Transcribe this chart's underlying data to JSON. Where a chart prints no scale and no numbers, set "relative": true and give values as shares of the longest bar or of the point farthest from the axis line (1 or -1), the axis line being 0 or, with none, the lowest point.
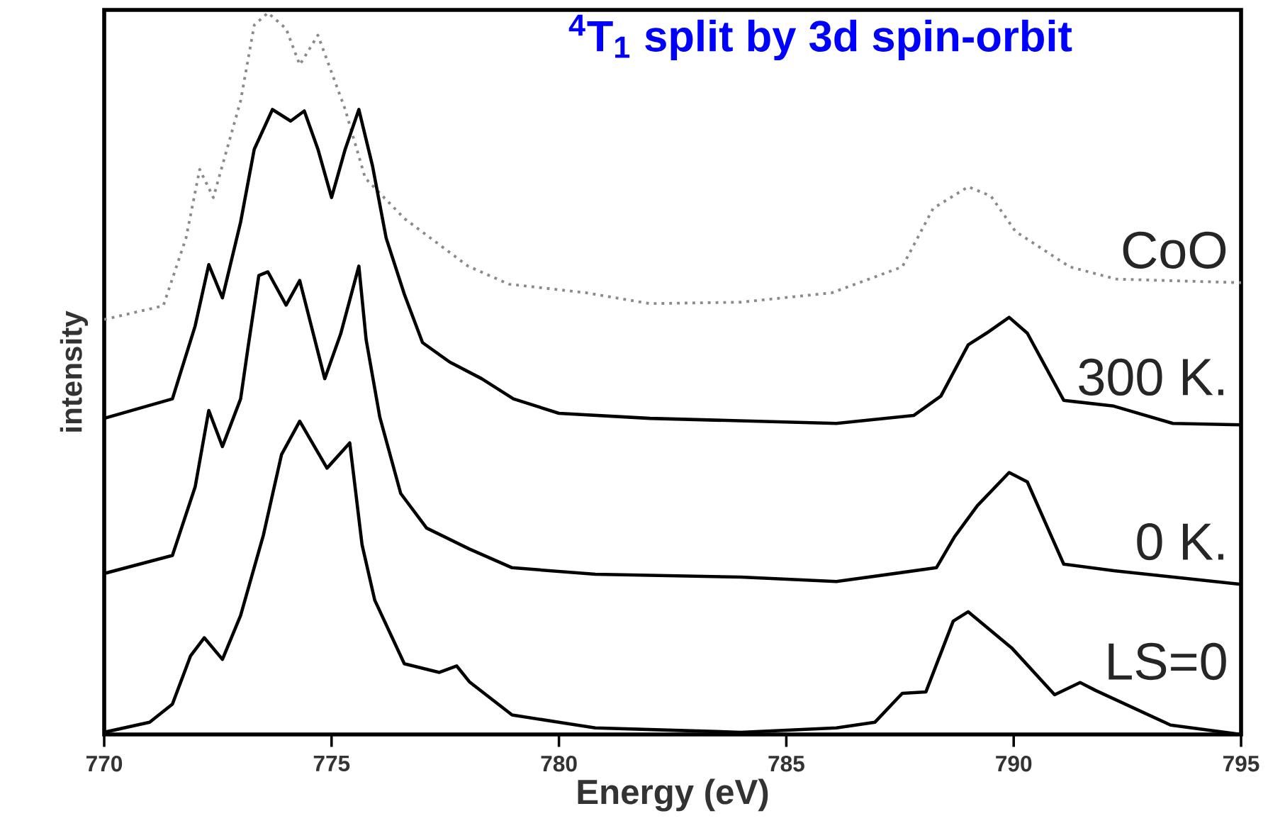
{
  "chart_data": {
    "type": "line",
    "title": "$^{4}$T$_{1}$ split by 3d spin-orbit",
    "xlabel": "Energy (eV)",
    "ylabel": "intensity",
    "relative": true,
    "xlim": [
      770,
      795
    ],
    "xticks": [
      770,
      775,
      780,
      785,
      790,
      795
    ],
    "grid": false,
    "marker": "none",
    "series": [
      {
        "name": "CoO",
        "color": "#8a8a8a",
        "line_style": "dotted",
        "x": [
          770,
          771.3,
          771.8,
          772.1,
          772.4,
          773.0,
          773.3,
          773.6,
          774.0,
          774.3,
          774.7,
          775.3,
          775.74,
          776.6,
          778.0,
          778.9,
          780.6,
          782,
          784,
          786,
          787.55,
          788.23,
          789.0,
          789.5,
          790.04,
          791.23,
          792.26,
          795
        ],
        "values": [
          0.575,
          0.594,
          0.688,
          0.783,
          0.744,
          0.878,
          0.983,
          1.0,
          0.978,
          0.928,
          0.969,
          0.866,
          0.771,
          0.715,
          0.649,
          0.624,
          0.612,
          0.597,
          0.599,
          0.612,
          0.648,
          0.729,
          0.759,
          0.746,
          0.697,
          0.648,
          0.631,
          0.626
        ]
      },
      {
        "name": "300 K.",
        "color": "#000000",
        "line_style": "solid",
        "x": [
          770,
          771.5,
          772.0,
          772.3,
          772.6,
          773.0,
          773.3,
          773.7,
          774.1,
          774.4,
          774.7,
          775.0,
          775.3,
          775.6,
          775.9,
          776.2,
          776.6,
          777.0,
          777.6,
          778.3,
          779.0,
          780.0,
          782,
          786.1,
          787.8,
          788.4,
          789.0,
          789.4,
          789.9,
          790.3,
          791.1,
          792.2,
          793.5,
          795
        ],
        "values": [
          0.438,
          0.465,
          0.566,
          0.651,
          0.605,
          0.71,
          0.811,
          0.866,
          0.85,
          0.864,
          0.811,
          0.744,
          0.811,
          0.866,
          0.788,
          0.688,
          0.61,
          0.543,
          0.516,
          0.493,
          0.465,
          0.445,
          0.438,
          0.431,
          0.442,
          0.469,
          0.54,
          0.556,
          0.578,
          0.556,
          0.463,
          0.455,
          0.431,
          0.429
        ]
      },
      {
        "name": "0 K.",
        "color": "#000000",
        "line_style": "solid",
        "x": [
          770,
          771.5,
          772.0,
          772.3,
          772.6,
          773.0,
          773.16,
          773.4,
          773.6,
          774.0,
          774.3,
          774.85,
          775.2,
          775.6,
          775.76,
          776.06,
          776.52,
          777.09,
          778.03,
          778.97,
          780.8,
          784,
          786.1,
          788.3,
          788.7,
          789.2,
          789.9,
          790.3,
          791.1,
          792.2,
          795
        ],
        "values": [
          0.223,
          0.248,
          0.343,
          0.449,
          0.399,
          0.465,
          0.535,
          0.636,
          0.641,
          0.595,
          0.629,
          0.493,
          0.555,
          0.649,
          0.547,
          0.44,
          0.334,
          0.286,
          0.257,
          0.231,
          0.222,
          0.218,
          0.212,
          0.231,
          0.274,
          0.317,
          0.363,
          0.35,
          0.236,
          0.227,
          0.208
        ]
      },
      {
        "name": "LS=0",
        "color": "#000000",
        "line_style": "solid",
        "x": [
          770,
          771,
          771.5,
          771.9,
          772.2,
          772.6,
          773.0,
          773.5,
          773.9,
          774.3,
          774.9,
          775.4,
          775.67,
          775.95,
          776.6,
          777.37,
          777.75,
          778.03,
          778.97,
          780.8,
          784,
          786.1,
          786.95,
          787.55,
          788.07,
          788.67,
          789.0,
          789.97,
          790.9,
          791.46,
          791.8,
          793.45,
          795
        ],
        "values": [
          0.003,
          0.017,
          0.042,
          0.109,
          0.134,
          0.104,
          0.165,
          0.276,
          0.388,
          0.434,
          0.369,
          0.404,
          0.263,
          0.186,
          0.098,
          0.086,
          0.095,
          0.073,
          0.027,
          0.009,
          0.003,
          0.009,
          0.017,
          0.057,
          0.059,
          0.157,
          0.17,
          0.119,
          0.055,
          0.072,
          0.061,
          0.013,
          0.0
        ]
      }
    ]
  }
}
